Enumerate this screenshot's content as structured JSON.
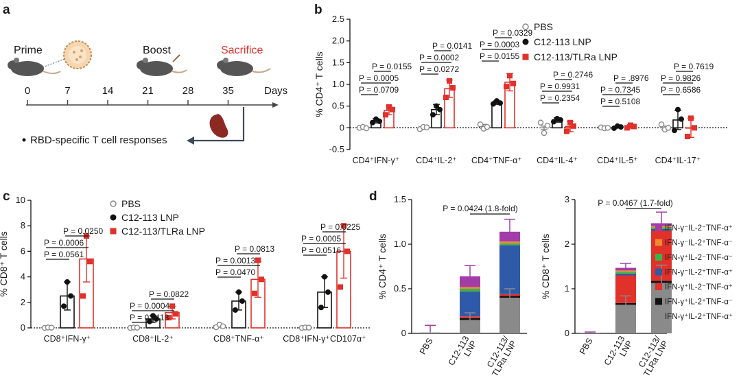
{
  "panel_a": {
    "label": "a",
    "prime": "Prime",
    "boost": "Boost",
    "sacrifice": "Sacrifice",
    "days": [
      "0",
      "7",
      "14",
      "21",
      "28",
      "35"
    ],
    "days_label": "Days",
    "readout": "RBD-specific T cell responses",
    "colors": {
      "sacrifice": "#e0312b",
      "line": "#444444",
      "arrow": "#3a4a5a"
    }
  },
  "chart_data": [
    {
      "id": "b",
      "type": "bar",
      "label": "b",
      "ylabel": "% CD4⁺ T cells",
      "ylim": [
        -0.5,
        2.5
      ],
      "yticks": [
        "2.5",
        "2.0",
        "1.5",
        "1.0",
        "0.5",
        "0",
        "-0.5"
      ],
      "ytick_values": [
        2.5,
        2.0,
        1.5,
        1.0,
        0.5,
        0,
        -0.5
      ],
      "categories": [
        "CD4⁺IFN-γ⁺",
        "CD4⁺IL-2⁺",
        "CD4⁺TNF-α⁺",
        "CD4⁺IL-4⁺",
        "CD4⁺IL-5⁺",
        "CD4⁺IL-17⁺"
      ],
      "series": [
        {
          "name": "PBS",
          "color": "#8a8a8a",
          "values": [
            0.0,
            0.0,
            0.03,
            0.0,
            0.0,
            0.0
          ],
          "err": [
            0.01,
            0.01,
            0.05,
            0.04,
            0.01,
            0.04
          ],
          "points": [
            [
              0,
              0.02,
              -0.01
            ],
            [
              -0.03,
              0.02,
              0.01
            ],
            [
              0.08,
              -0.02,
              0.02
            ],
            [
              0.12,
              -0.12,
              0.05
            ],
            [
              0.01,
              -0.01,
              0.0
            ],
            [
              0.08,
              -0.04,
              0.0
            ]
          ]
        },
        {
          "name": "C12-113 LNP",
          "color": "#111111",
          "values": [
            0.16,
            0.42,
            0.58,
            0.18,
            0.02,
            0.18
          ],
          "err": [
            0.05,
            0.12,
            0.04,
            0.05,
            0.02,
            0.22
          ],
          "points": [
            [
              0.12,
              0.2,
              0.15
            ],
            [
              0.3,
              0.5,
              0.42
            ],
            [
              0.55,
              0.62,
              0.57
            ],
            [
              0.14,
              0.21,
              0.18
            ],
            [
              -0.01,
              0.04,
              0.02
            ],
            [
              -0.06,
              0.42,
              0.2
            ]
          ]
        },
        {
          "name": "C12-113/TLRa LNP",
          "color": "#e0312b",
          "values": [
            0.4,
            0.9,
            1.05,
            0.03,
            0.03,
            0.0
          ],
          "err": [
            0.1,
            0.2,
            0.2,
            0.12,
            0.04,
            0.22
          ],
          "points": [
            [
              0.3,
              0.48,
              0.42
            ],
            [
              0.7,
              1.08,
              0.92
            ],
            [
              0.95,
              1.2,
              1.02
            ],
            [
              -0.08,
              0.12,
              0.04
            ],
            [
              0.0,
              0.06,
              0.03
            ],
            [
              -0.2,
              0.22,
              0.0
            ]
          ]
        }
      ],
      "legend": [
        "PBS",
        "C12-113 LNP",
        "C12-113/TLRa LNP"
      ],
      "annotations": [
        [
          "P = 0.0709",
          "P = 0.0005",
          "P = 0.0155"
        ],
        [
          "P = 0.0272",
          "P = 0.0002",
          "P = 0.0141"
        ],
        [
          "P = 0.0155",
          "P = 0.0003",
          "P = 0.0329"
        ],
        [
          "P = 0.2354",
          "P = 0.9931",
          "P = 0.2746"
        ],
        [
          "P = 0.5108",
          "P = 0.7345",
          "P = .8976"
        ],
        [
          "P = 0.6586",
          "P = 0.9826",
          "P = 0.7619"
        ]
      ]
    },
    {
      "id": "c",
      "type": "bar",
      "label": "c",
      "ylabel": "% CD8⁺ T cells",
      "ylim": [
        0,
        10
      ],
      "yticks": [
        "10",
        "8",
        "6",
        "4",
        "2",
        "0"
      ],
      "ytick_values": [
        10,
        8,
        6,
        4,
        2,
        0
      ],
      "categories": [
        "CD8⁺IFN-γ⁺",
        "CD8⁺IL-2⁺",
        "CD8⁺TNF-α⁺",
        "CD8⁺IFN-γ⁺CD107α⁺"
      ],
      "series": [
        {
          "name": "PBS",
          "color": "#8a8a8a",
          "values": [
            0.02,
            0.02,
            0.15,
            0.02
          ],
          "err": [
            0.02,
            0.02,
            0.1,
            0.02
          ],
          "points": [
            [
              0.0,
              0.03,
              0.02
            ],
            [
              0.0,
              0.03,
              0.02
            ],
            [
              0.05,
              0.25,
              0.12
            ],
            [
              0.0,
              0.03,
              0.02
            ]
          ]
        },
        {
          "name": "C12-113 LNP",
          "color": "#111111",
          "values": [
            2.5,
            0.7,
            2.1,
            2.8
          ],
          "err": [
            1.1,
            0.25,
            0.7,
            1.2
          ],
          "points": [
            [
              1.7,
              3.6,
              2.5
            ],
            [
              0.5,
              0.95,
              0.7
            ],
            [
              1.4,
              2.8,
              2.1
            ],
            [
              1.6,
              4.0,
              2.8
            ]
          ]
        },
        {
          "name": "C12-113/TLRa LNP",
          "color": "#e0312b",
          "values": [
            5.4,
            1.2,
            3.8,
            6.0
          ],
          "err": [
            1.8,
            0.5,
            1.4,
            2.1
          ],
          "points": [
            [
              2.5,
              7.2,
              5.2
            ],
            [
              0.8,
              1.7,
              1.1
            ],
            [
              2.7,
              5.3,
              3.8
            ],
            [
              3.2,
              8.0,
              6.0
            ]
          ]
        }
      ],
      "legend": [
        "PBS",
        "C12-113 LNP",
        "C12-113/TLRa LNP"
      ],
      "annotations": [
        [
          "P = 0.0561",
          "P = 0.0006",
          "P = 0.0250"
        ],
        [
          "P = 0.0118",
          "P = 0.0004",
          "P = 0.0822"
        ],
        [
          "P = 0.0470",
          "P = 0.0013",
          "P = 0.0813"
        ],
        [
          "P = 0.0516",
          "P = 0.0005",
          "P = 0.0225"
        ]
      ]
    },
    {
      "id": "d1",
      "type": "bar",
      "stacked": true,
      "label": "d",
      "ylabel": "% CD4⁺ T cells",
      "ylim": [
        0,
        1.5
      ],
      "yticks": [
        "1.5",
        "1.0",
        "0.5",
        "0"
      ],
      "ytick_values": [
        1.5,
        1.0,
        0.5,
        0
      ],
      "categories": [
        "PBS",
        "C12-113 LNP",
        "C12-113/ TLRa LNP"
      ],
      "category_lines": [
        [
          "PBS"
        ],
        [
          "C12-113",
          "LNP"
        ],
        [
          "C12-113/",
          "TLRa LNP"
        ]
      ],
      "series": [
        {
          "name": "IFN-γ⁺IL-2⁺TNF-α⁺",
          "color": "#8a8a8a",
          "values": [
            0.01,
            0.15,
            0.4
          ]
        },
        {
          "name": "IFN-γ⁺IL-2⁺TNF-α⁻",
          "color": "#111111",
          "values": [
            0.0,
            0.02,
            0.02
          ]
        },
        {
          "name": "IFN-γ⁺IL-2⁻TNF-α⁺",
          "color": "#e0312b",
          "values": [
            0.0,
            0.02,
            0.02
          ]
        },
        {
          "name": "IFN-γ⁻IL-2⁺TNF-α⁺",
          "color": "#2f5aa8",
          "values": [
            0.0,
            0.28,
            0.55
          ]
        },
        {
          "name": "IFN-γ⁺IL-2⁻TNF-α⁻",
          "color": "#3cb34a",
          "values": [
            0.0,
            0.03,
            0.02
          ]
        },
        {
          "name": "IFN-γ⁻IL-2⁺TNF-α⁻",
          "color": "#f08a2c",
          "values": [
            0.0,
            0.02,
            0.02
          ]
        },
        {
          "name": "IFN-γ⁻IL-2⁻TNF-α⁺",
          "color": "#a23ca8",
          "values": [
            0.0,
            0.12,
            0.11
          ]
        }
      ],
      "err_top": [
        0.08,
        0.12,
        0.14
      ],
      "err_mid": [
        0,
        0.08,
        0.1
      ],
      "annotation": "P = 0.0424 (1.8-fold)"
    },
    {
      "id": "d2",
      "type": "bar",
      "stacked": true,
      "label": "",
      "ylabel": "% CD8⁺ T cells",
      "ylim": [
        0,
        3
      ],
      "yticks": [
        "3",
        "2",
        "1",
        "0"
      ],
      "ytick_values": [
        3,
        2,
        1,
        0
      ],
      "categories": [
        "PBS",
        "C12-113 LNP",
        "C12-113/ TLRa LNP"
      ],
      "category_lines": [
        [
          "PBS"
        ],
        [
          "C12-113",
          "LNP"
        ],
        [
          "C12-113/",
          "TLRa LNP"
        ]
      ],
      "series": [
        {
          "name": "IFN-γ⁺IL-2⁺TNF-α⁺",
          "color": "#8a8a8a",
          "values": [
            0.01,
            0.64,
            1.13
          ]
        },
        {
          "name": "IFN-γ⁺IL-2⁺TNF-α⁻",
          "color": "#111111",
          "values": [
            0.0,
            0.04,
            0.05
          ]
        },
        {
          "name": "IFN-γ⁺IL-2⁻TNF-α⁺",
          "color": "#e0312b",
          "values": [
            0.0,
            0.62,
            1.12
          ]
        },
        {
          "name": "IFN-γ⁻IL-2⁺TNF-α⁺",
          "color": "#2f5aa8",
          "values": [
            0.0,
            0.04,
            0.04
          ]
        },
        {
          "name": "IFN-γ⁺IL-2⁻TNF-α⁻",
          "color": "#3cb34a",
          "values": [
            0.0,
            0.04,
            0.04
          ]
        },
        {
          "name": "IFN-γ⁻IL-2⁺TNF-α⁻",
          "color": "#f08a2c",
          "values": [
            0.0,
            0.03,
            0.03
          ]
        },
        {
          "name": "IFN-γ⁻IL-2⁻TNF-α⁺",
          "color": "#a23ca8",
          "values": [
            0.0,
            0.06,
            0.06
          ]
        }
      ],
      "err_top": [
        0.02,
        0.1,
        0.25
      ],
      "err_mid": [
        0,
        0.2,
        0.4
      ],
      "annotation": "P = 0.0467 (1.7-fold)",
      "legend_order": [
        "IFN-γ⁻IL-2⁻TNF-α⁺",
        "IFN-γ⁻IL-2⁺TNF-α⁻",
        "IFN-γ⁺IL-2⁻TNF-α⁻",
        "IFN-γ⁻IL-2⁺TNF-α⁺",
        "IFN-γ⁺IL-2⁻TNF-α⁺",
        "IFN-γ⁺IL-2⁺TNF-α⁻",
        "IFN-γ⁺IL-2⁺TNF-α⁺"
      ]
    }
  ]
}
